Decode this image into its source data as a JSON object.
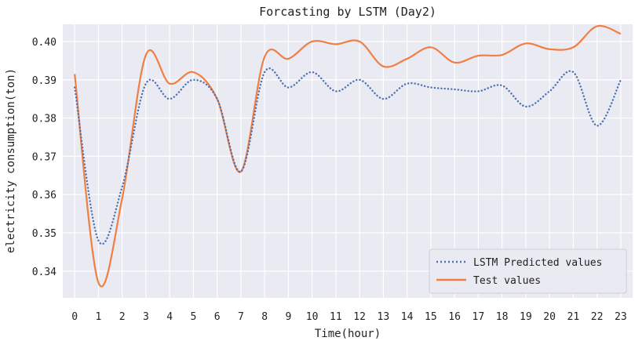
{
  "chart_data": {
    "type": "line",
    "title": "Forcasting by LSTM (Day2)",
    "xlabel": "Time(hour)",
    "ylabel": "electricity consumption(ton)",
    "x": [
      0,
      1,
      2,
      3,
      4,
      5,
      6,
      7,
      8,
      9,
      10,
      11,
      12,
      13,
      14,
      15,
      16,
      17,
      18,
      19,
      20,
      21,
      22,
      23
    ],
    "xlim": [
      -0.5,
      23.5
    ],
    "ylim": [
      0.333,
      0.4045
    ],
    "yticks": [
      0.34,
      0.35,
      0.36,
      0.37,
      0.38,
      0.39,
      0.4
    ],
    "ytick_labels": [
      "0.34",
      "0.35",
      "0.36",
      "0.37",
      "0.38",
      "0.39",
      "0.40"
    ],
    "grid": true,
    "legend_position": "lower-right",
    "series": [
      {
        "name": "LSTM Predicted values",
        "style": "dotted",
        "color": "#4c72b0",
        "values": [
          0.388,
          0.348,
          0.362,
          0.389,
          0.385,
          0.39,
          0.385,
          0.366,
          0.392,
          0.388,
          0.392,
          0.387,
          0.39,
          0.385,
          0.389,
          0.388,
          0.3875,
          0.387,
          0.3885,
          0.383,
          0.387,
          0.392,
          0.378,
          0.39
        ]
      },
      {
        "name": "Test values",
        "style": "solid",
        "color": "#f07f44",
        "values": [
          0.3915,
          0.337,
          0.359,
          0.3965,
          0.389,
          0.392,
          0.385,
          0.366,
          0.396,
          0.3955,
          0.4,
          0.3993,
          0.4,
          0.3935,
          0.3955,
          0.3985,
          0.3945,
          0.3963,
          0.3965,
          0.3995,
          0.398,
          0.3985,
          0.404,
          0.402
        ]
      }
    ]
  }
}
